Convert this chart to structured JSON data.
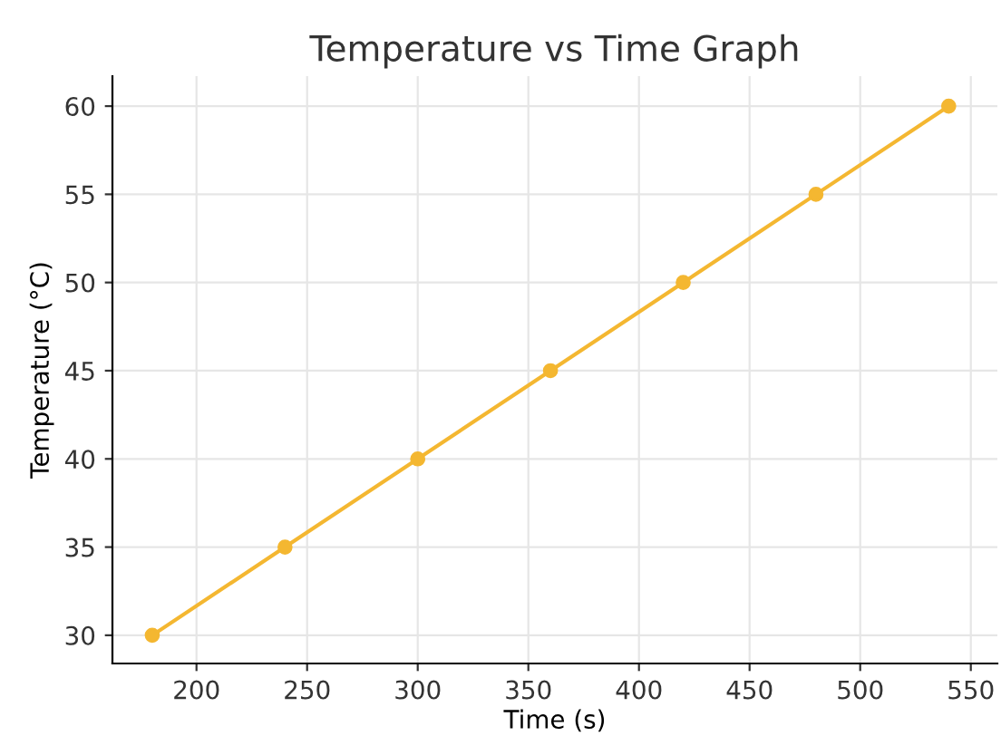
{
  "chart_data": {
    "type": "line",
    "title": "Temperature vs Time Graph",
    "xlabel": "Time (s)",
    "ylabel": "Temperature (°C)",
    "x": [
      180,
      240,
      300,
      360,
      420,
      480,
      540
    ],
    "series": [
      {
        "color": "#f4b731",
        "values": [
          30,
          35,
          40,
          45,
          50,
          55,
          60
        ]
      }
    ],
    "xlim": [
      162,
      562
    ],
    "ylim": [
      28.4,
      61.7
    ],
    "xticks": [
      200,
      250,
      300,
      350,
      400,
      450,
      500,
      550
    ],
    "yticks": [
      30,
      35,
      40,
      45,
      50,
      55,
      60
    ],
    "grid": true,
    "marker": "circle",
    "line_style": "solid",
    "legend": false
  }
}
